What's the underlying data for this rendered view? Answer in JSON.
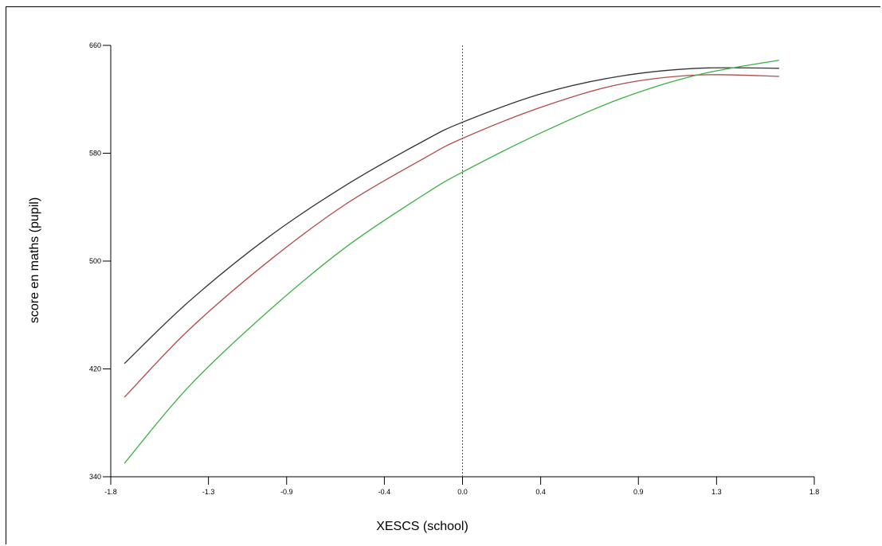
{
  "chart_data": {
    "type": "line",
    "xlabel": "XESCS (school)",
    "ylabel": "score en maths (pupil)",
    "xlim": [
      -1.8,
      1.8
    ],
    "ylim": [
      340,
      660
    ],
    "x_ticks": [
      -1.8,
      -1.3,
      -0.9,
      -0.4,
      0.0,
      0.4,
      0.9,
      1.3,
      1.8
    ],
    "x_tick_labels": [
      "-1.8",
      "-1.3",
      "-0.9",
      "-0.4",
      "0.0",
      "0.4",
      "0.9",
      "1.3",
      "1.8"
    ],
    "y_ticks": [
      340,
      420,
      500,
      580,
      660
    ],
    "y_tick_labels": [
      "340",
      "420",
      "500",
      "580",
      "660"
    ],
    "reference_line": {
      "x": 0.0,
      "style": "dotted",
      "color": "#555555"
    },
    "grid": false,
    "legend": "none",
    "x": [
      -1.73,
      -1.4,
      -1.0,
      -0.6,
      -0.2,
      0.0,
      0.4,
      0.8,
      1.2,
      1.62
    ],
    "series": [
      {
        "color": "#333333",
        "values": [
          424,
          470,
          517,
          556,
          589,
          603,
          624,
          637,
          643,
          643
        ]
      },
      {
        "color": "#b34a4a",
        "values": [
          399,
          449,
          499,
          542,
          576,
          591,
          614,
          631,
          638,
          637
        ]
      },
      {
        "color": "#3cb043",
        "values": [
          350,
          407,
          462,
          510,
          549,
          566,
          595,
          620,
          638,
          649
        ]
      }
    ]
  }
}
